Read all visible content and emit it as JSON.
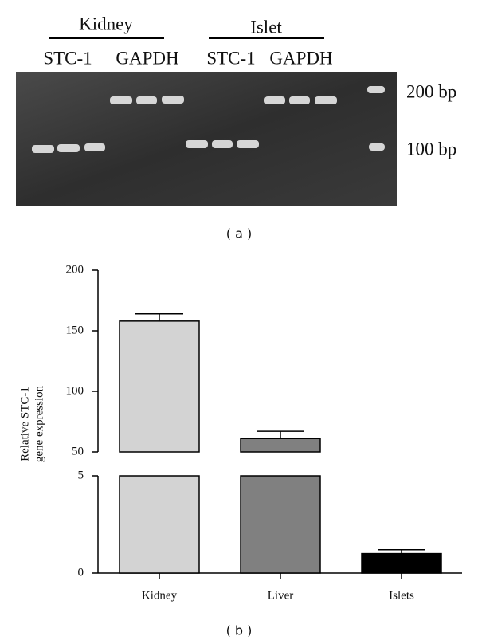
{
  "gel": {
    "groups": [
      "Kidney",
      "Islet"
    ],
    "lanes": [
      "STC-1",
      "GAPDH",
      "STC-1",
      "GAPDH"
    ],
    "markers": [
      "200 bp",
      "100 bp"
    ],
    "caption": "( a )"
  },
  "chart_data": {
    "type": "bar",
    "caption": "( b )",
    "ylabel": [
      "Relative STC-1",
      "gene expression"
    ],
    "categories": [
      "Kidney",
      "Liver",
      "Islets"
    ],
    "values": [
      158,
      61,
      1.0
    ],
    "errors": [
      6,
      6,
      0.2
    ],
    "colors": [
      "#d3d3d3",
      "#808080",
      "#000000"
    ],
    "ylim": [
      0,
      200
    ],
    "ybreak": [
      5,
      50
    ],
    "yticks": [
      0,
      5,
      50,
      100,
      150,
      200
    ]
  }
}
